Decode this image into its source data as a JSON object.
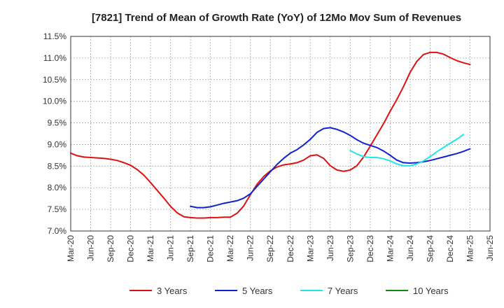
{
  "chart_data": {
    "type": "line",
    "title": "[7821]  Trend of Mean of Growth Rate (YoY) of 12Mo Mov Sum of Revenues",
    "xlabel": "",
    "ylabel": "",
    "ylim": [
      7.0,
      11.5
    ],
    "grid": true,
    "legend_position": "bottom",
    "x_tick_labels": [
      "Mar-20",
      "Jun-20",
      "Sep-20",
      "Dec-20",
      "Mar-21",
      "Jun-21",
      "Sep-21",
      "Dec-21",
      "Mar-22",
      "Jun-22",
      "Sep-22",
      "Dec-22",
      "Mar-23",
      "Jun-23",
      "Sep-23",
      "Dec-23",
      "Mar-24",
      "Jun-24",
      "Sep-24",
      "Dec-24",
      "Mar-25",
      "Jun-25"
    ],
    "y_tick_labels": [
      "7.0%",
      "7.5%",
      "8.0%",
      "8.5%",
      "9.0%",
      "9.5%",
      "10.0%",
      "10.5%",
      "11.0%",
      "11.5%"
    ],
    "series": [
      {
        "name": "3 Years",
        "color": "#dd1111",
        "start_index": 0,
        "values": [
          8.8,
          8.74,
          8.71,
          8.7,
          8.69,
          8.68,
          8.66,
          8.63,
          8.58,
          8.52,
          8.42,
          8.29,
          8.12,
          7.94,
          7.76,
          7.57,
          7.42,
          7.33,
          7.31,
          7.3,
          7.3,
          7.31,
          7.31,
          7.32,
          7.32,
          7.41,
          7.58,
          7.84,
          8.08,
          8.26,
          8.39,
          8.48,
          8.53,
          8.55,
          8.58,
          8.64,
          8.74,
          8.76,
          8.68,
          8.51,
          8.41,
          8.38,
          8.41,
          8.51,
          8.71,
          8.96,
          9.22,
          9.48,
          9.77,
          10.04,
          10.34,
          10.67,
          10.92,
          11.08,
          11.13,
          11.13,
          11.09,
          11.01,
          10.94,
          10.89,
          10.85
        ]
      },
      {
        "name": "5 Years",
        "color": "#1122cc",
        "start_index": 18,
        "values": [
          7.57,
          7.54,
          7.54,
          7.56,
          7.6,
          7.64,
          7.67,
          7.7,
          7.76,
          7.86,
          8.03,
          8.2,
          8.37,
          8.54,
          8.68,
          8.8,
          8.88,
          8.99,
          9.12,
          9.28,
          9.37,
          9.39,
          9.35,
          9.29,
          9.21,
          9.11,
          9.03,
          8.98,
          8.93,
          8.85,
          8.75,
          8.64,
          8.58,
          8.57,
          8.58,
          8.6,
          8.63,
          8.67,
          8.71,
          8.75,
          8.79,
          8.84,
          8.9
        ]
      },
      {
        "name": "7 Years",
        "color": "#22e5ee",
        "start_index": 42,
        "values": [
          8.86,
          8.78,
          8.72,
          8.7,
          8.7,
          8.67,
          8.62,
          8.55,
          8.51,
          8.51,
          8.55,
          8.62,
          8.72,
          8.83,
          8.93,
          9.03,
          9.12,
          9.23
        ]
      },
      {
        "name": "10 Years",
        "color": "#118811",
        "start_index": 0,
        "values": []
      }
    ]
  }
}
